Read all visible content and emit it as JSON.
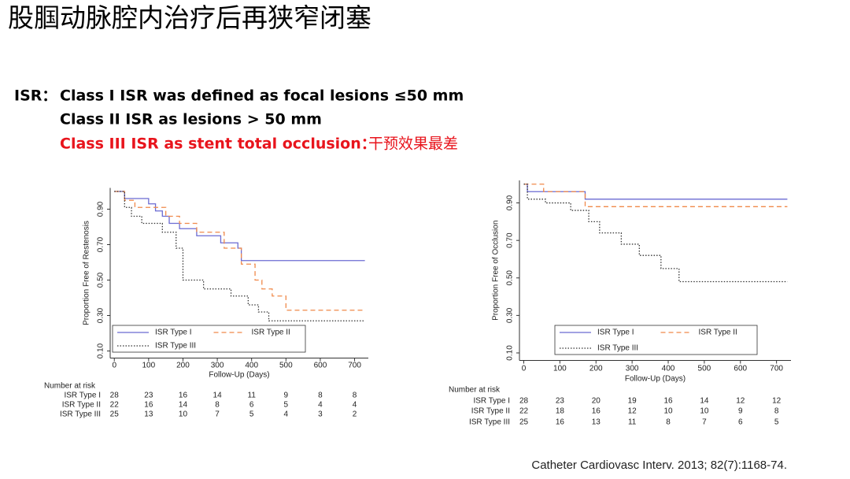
{
  "title": "股腘动脉腔内治疗后再狭窄闭塞",
  "isr": {
    "label": "ISR：",
    "line1": "Class I ISR was defined as focal lesions ≤50 mm",
    "line2": "Class II ISR as lesions > 50 mm",
    "line3": "Class III ISR as stent total occlusion：",
    "line3_note": "干预效果最差"
  },
  "citation": "Catheter Cardiovasc Interv. 2013; 82(7):1168-74.",
  "chart_data": [
    {
      "type": "line",
      "step": true,
      "y_label": "Proportion Free of Restenosis",
      "x_label": "Follow-Up (Days)",
      "xlim": [
        -12,
        740
      ],
      "xticks": [
        0,
        100,
        200,
        300,
        400,
        500,
        600,
        700
      ],
      "ylim": [
        0.06,
        1.02
      ],
      "yticks": [
        {
          "value": 0.1,
          "label": "0.10"
        },
        {
          "value": 0.3,
          "label": "0.30"
        },
        {
          "value": 0.5,
          "label": "0.50"
        },
        {
          "value": 0.7,
          "label": "0.70"
        },
        {
          "value": 0.9,
          "label": "0.90"
        }
      ],
      "legend": "lower left",
      "series": [
        {
          "name": "ISR Type I",
          "color": "#6b6bd2",
          "style": "solid",
          "x": [
            0,
            30,
            100,
            120,
            140,
            160,
            190,
            240,
            310,
            360,
            370,
            730
          ],
          "values": [
            1.0,
            0.96,
            0.93,
            0.89,
            0.86,
            0.82,
            0.79,
            0.75,
            0.71,
            0.68,
            0.61,
            0.61
          ]
        },
        {
          "name": "ISR Type II",
          "color": "#f0894a",
          "style": "dashed",
          "x": [
            0,
            30,
            60,
            150,
            190,
            240,
            320,
            370,
            410,
            430,
            460,
            500,
            730
          ],
          "values": [
            1.0,
            0.95,
            0.91,
            0.86,
            0.82,
            0.77,
            0.68,
            0.59,
            0.5,
            0.45,
            0.41,
            0.33,
            0.33
          ]
        },
        {
          "name": "ISR Type III",
          "color": "#333333",
          "style": "dotted",
          "x": [
            0,
            30,
            50,
            80,
            140,
            180,
            200,
            260,
            340,
            390,
            420,
            450,
            730
          ],
          "values": [
            1.0,
            0.91,
            0.86,
            0.82,
            0.77,
            0.68,
            0.5,
            0.45,
            0.41,
            0.36,
            0.32,
            0.27,
            0.27
          ]
        }
      ],
      "risk_table": {
        "title": "Number at risk",
        "rows": [
          {
            "name": "ISR Type I",
            "values": [
              28,
              23,
              16,
              14,
              11,
              9,
              8,
              8
            ]
          },
          {
            "name": "ISR Type II",
            "values": [
              22,
              16,
              14,
              8,
              6,
              5,
              4,
              4
            ]
          },
          {
            "name": "ISR Type III",
            "values": [
              25,
              13,
              10,
              7,
              5,
              4,
              3,
              2
            ]
          }
        ]
      }
    },
    {
      "type": "line",
      "step": true,
      "y_label": "Proportion Free of Occlusion",
      "x_label": "Follow-Up (Days)",
      "xlim": [
        -12,
        740
      ],
      "xticks": [
        0,
        100,
        200,
        300,
        400,
        500,
        600,
        700
      ],
      "ylim": [
        0.06,
        1.02
      ],
      "yticks": [
        {
          "value": 0.1,
          "label": "0.10"
        },
        {
          "value": 0.3,
          "label": "0.30"
        },
        {
          "value": 0.5,
          "label": "0.50"
        },
        {
          "value": 0.7,
          "label": "0.70"
        },
        {
          "value": 0.9,
          "label": "0.90"
        }
      ],
      "legend": "lower left",
      "series": [
        {
          "name": "ISR Type I",
          "color": "#6b6bd2",
          "style": "solid",
          "x": [
            0,
            10,
            170,
            730
          ],
          "values": [
            1.0,
            0.96,
            0.92,
            0.92
          ]
        },
        {
          "name": "ISR Type II",
          "color": "#f0894a",
          "style": "dashed",
          "x": [
            0,
            55,
            170,
            730
          ],
          "values": [
            1.0,
            0.96,
            0.88,
            0.88
          ]
        },
        {
          "name": "ISR Type III",
          "color": "#333333",
          "style": "dotted",
          "x": [
            0,
            10,
            60,
            130,
            180,
            210,
            270,
            320,
            380,
            430,
            730
          ],
          "values": [
            1.0,
            0.92,
            0.9,
            0.86,
            0.8,
            0.74,
            0.68,
            0.62,
            0.55,
            0.48,
            0.48
          ]
        }
      ],
      "risk_table": {
        "title": "Number at risk",
        "rows": [
          {
            "name": "ISR Type I",
            "values": [
              28,
              23,
              20,
              19,
              16,
              14,
              12,
              12
            ]
          },
          {
            "name": "ISR Type II",
            "values": [
              22,
              18,
              16,
              12,
              10,
              10,
              9,
              8
            ]
          },
          {
            "name": "ISR Type III",
            "values": [
              25,
              16,
              13,
              11,
              8,
              7,
              6,
              5
            ]
          }
        ]
      }
    }
  ]
}
